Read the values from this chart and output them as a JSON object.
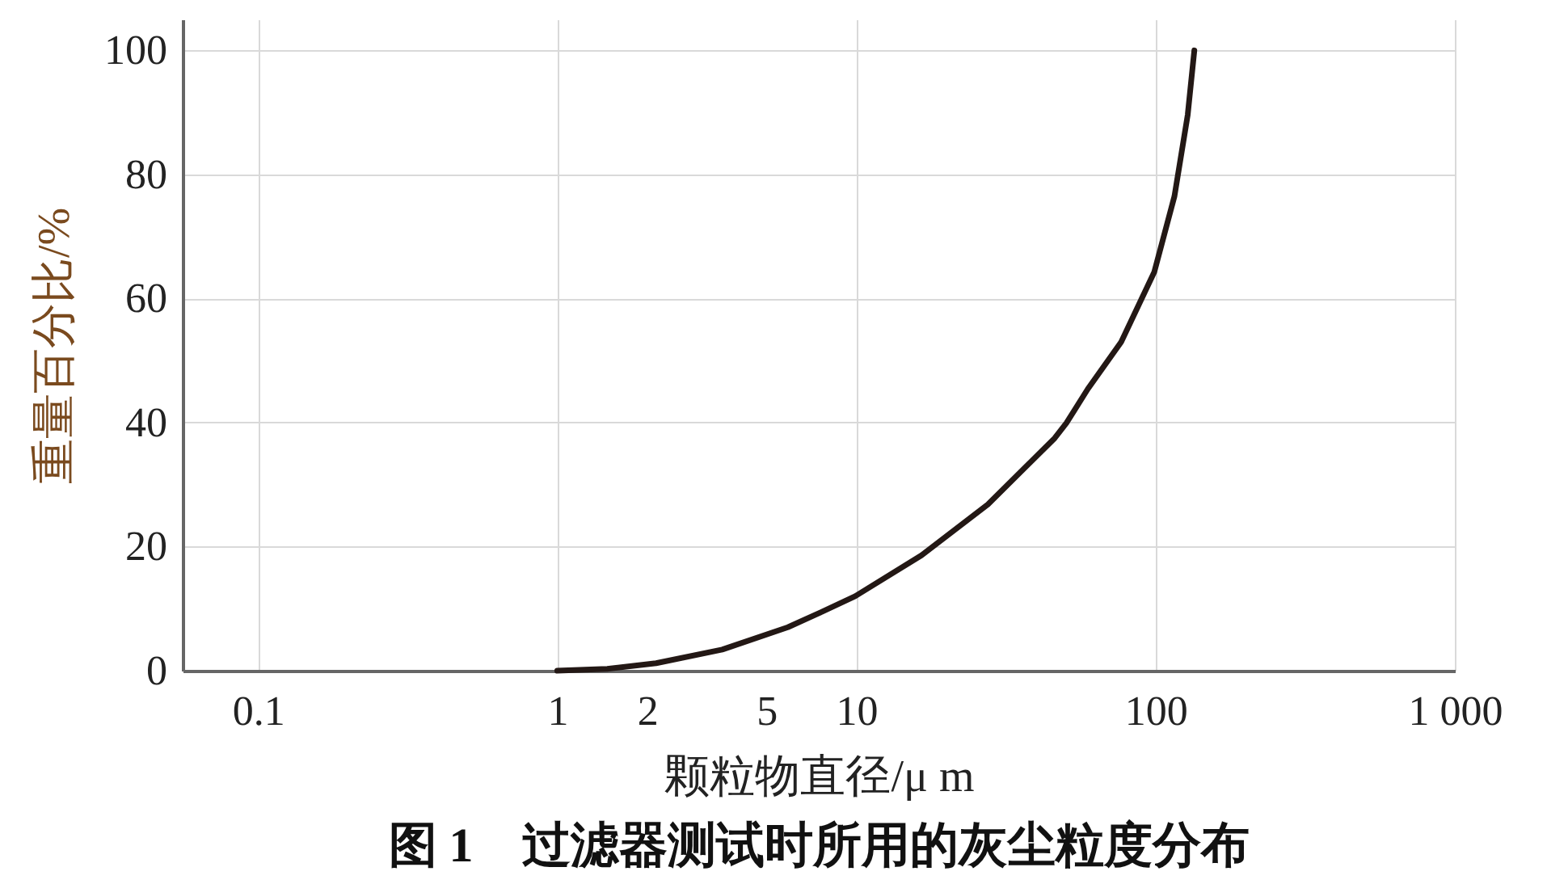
{
  "chart_data": {
    "type": "line",
    "title": "图 1　过滤器测试时所用的灰尘粒度分布",
    "xlabel": "颗粒物直径/μ m",
    "ylabel": "重量百分比/%",
    "log": "x",
    "xlim": [
      0.056,
      1000
    ],
    "xticks": [
      0.1,
      1,
      2,
      5,
      10,
      100,
      {
        "value": 1000,
        "label": "1 000"
      }
    ],
    "ylim": [
      0,
      105
    ],
    "yticks": [
      0,
      20,
      40,
      60,
      80,
      100
    ],
    "grid": true,
    "line_style": "solid",
    "marker": "none",
    "series": [
      {
        "color": "#231815",
        "x": [
          1,
          1.47,
          2.14,
          3.56,
          5.9,
          7.67,
          9.9,
          16.5,
          27.5,
          46,
          50.3,
          59.3,
          76.7,
          99,
          115.6,
          128,
          134.7
        ],
        "values": [
          0,
          0.3,
          1.2,
          3.4,
          7,
          9.5,
          12,
          18.6,
          26.8,
          37.5,
          39.9,
          45.4,
          53,
          64.3,
          76.5,
          89.6,
          100
        ]
      }
    ]
  }
}
